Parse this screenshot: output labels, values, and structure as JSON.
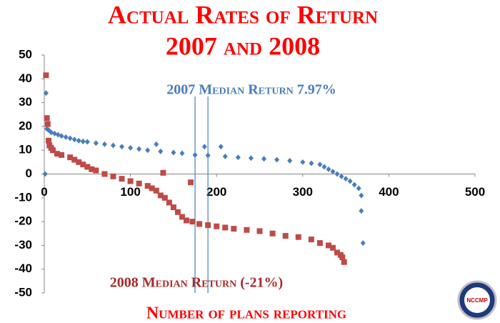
{
  "chart_data": {
    "type": "scatter",
    "title": "Actual Rates of Return",
    "subtitle": "2007 and 2008",
    "x_label": "Number of plans reporting",
    "annotations": [
      "2007 Median Return 7.97%",
      "2008 Median Return (-21%)"
    ],
    "logo_text": "NCCMP",
    "xlim": [
      0,
      500
    ],
    "xticks": [
      0,
      100,
      200,
      300,
      400,
      500
    ],
    "ylim": [
      -50,
      50
    ],
    "yticks": [
      -50,
      -40,
      -30,
      -20,
      -10,
      0,
      10,
      20,
      30,
      40,
      50
    ],
    "vlines": [
      175,
      190
    ],
    "series": [
      {
        "name": "2007",
        "color": "#4a7ebb",
        "marker": "diamond",
        "x": [
          1,
          2,
          3,
          5,
          8,
          12,
          16,
          20,
          25,
          30,
          35,
          40,
          45,
          50,
          60,
          70,
          80,
          90,
          100,
          110,
          120,
          130,
          135,
          150,
          160,
          175,
          186,
          190,
          205,
          210,
          225,
          240,
          255,
          270,
          285,
          300,
          310,
          320,
          325,
          330,
          335,
          340,
          345,
          350,
          355,
          360,
          365,
          368,
          368,
          370
        ],
        "values": [
          0,
          34,
          19,
          18.5,
          17.5,
          17,
          16.5,
          16,
          15.5,
          15,
          14.5,
          14,
          13.7,
          13.5,
          13,
          12.5,
          12,
          11.5,
          11,
          10.5,
          10,
          12.5,
          9.5,
          9,
          8.7,
          8,
          11.5,
          7.8,
          11.5,
          7.4,
          7,
          6.7,
          6.4,
          6,
          5.6,
          5,
          4.5,
          4,
          3,
          2,
          1,
          0,
          -1,
          -2,
          -3,
          -4.5,
          -6,
          -9,
          -15.5,
          -29
        ]
      },
      {
        "name": "2008",
        "color": "#be4b48",
        "marker": "square",
        "x": [
          2,
          3,
          4,
          5,
          6,
          8,
          10,
          15,
          20,
          30,
          35,
          40,
          45,
          50,
          55,
          60,
          70,
          80,
          90,
          100,
          110,
          120,
          125,
          130,
          135,
          138,
          140,
          145,
          150,
          155,
          160,
          165,
          170,
          172,
          180,
          190,
          200,
          210,
          220,
          235,
          250,
          265,
          280,
          295,
          310,
          320,
          330,
          335,
          340,
          344,
          346,
          348
        ],
        "values": [
          41.5,
          23.5,
          21,
          14,
          12,
          11,
          10,
          8.5,
          8,
          7,
          6,
          5,
          4,
          3,
          2,
          1.5,
          0,
          -1,
          -2,
          -3,
          -4,
          -5,
          -6,
          -7,
          -9,
          0.5,
          -10,
          -12,
          -14,
          -16,
          -18,
          -19.5,
          -3.5,
          -20,
          -21,
          -21.5,
          -22,
          -22.5,
          -23,
          -23.5,
          -24,
          -25,
          -26,
          -26.5,
          -27.5,
          -29,
          -30,
          -31,
          -33,
          -34,
          -35,
          -37
        ]
      }
    ]
  }
}
